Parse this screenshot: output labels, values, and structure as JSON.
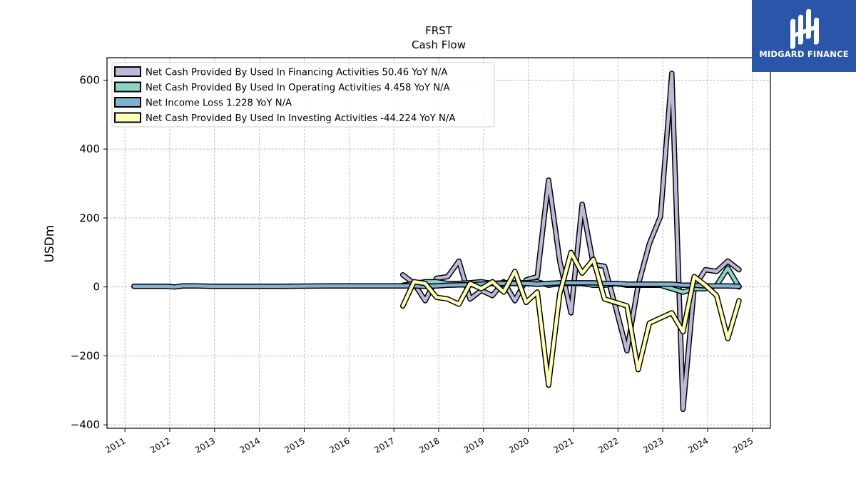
{
  "chart_data": {
    "type": "line",
    "title": "FRST",
    "subtitle": "Cash Flow",
    "xlabel": "",
    "ylabel": "USDm",
    "xlim": [
      2010.6,
      2025.4
    ],
    "ylim": [
      -410,
      665
    ],
    "x_ticks": [
      "2011",
      "2012",
      "2013",
      "2014",
      "2015",
      "2016",
      "2017",
      "2018",
      "2019",
      "2020",
      "2021",
      "2022",
      "2023",
      "2024",
      "2025"
    ],
    "y_ticks": [
      -400,
      -200,
      0,
      200,
      400,
      600
    ],
    "y_tick_labels": [
      "−400",
      "−200",
      "0",
      "200",
      "400",
      "600"
    ],
    "grid": true,
    "legend_position": "top-left",
    "series": [
      {
        "name": "Net Cash Provided By Used In Financing Activities  50.46 YoY N/A",
        "color": "#bcb8d8",
        "points": [
          [
            2017.2,
            35
          ],
          [
            2017.45,
            10
          ],
          [
            2017.7,
            -40
          ],
          [
            2017.95,
            25
          ],
          [
            2018.2,
            30
          ],
          [
            2018.45,
            75
          ],
          [
            2018.7,
            -35
          ],
          [
            2018.95,
            -10
          ],
          [
            2019.2,
            -25
          ],
          [
            2019.45,
            15
          ],
          [
            2019.7,
            -40
          ],
          [
            2019.95,
            20
          ],
          [
            2020.2,
            30
          ],
          [
            2020.45,
            310
          ],
          [
            2020.7,
            75
          ],
          [
            2020.95,
            -75
          ],
          [
            2021.2,
            240
          ],
          [
            2021.45,
            65
          ],
          [
            2021.7,
            60
          ],
          [
            2021.95,
            -60
          ],
          [
            2022.2,
            -185
          ],
          [
            2022.45,
            5
          ],
          [
            2022.7,
            125
          ],
          [
            2022.95,
            205
          ],
          [
            2023.2,
            620
          ],
          [
            2023.45,
            -355
          ],
          [
            2023.7,
            0
          ],
          [
            2023.95,
            50
          ],
          [
            2024.2,
            45
          ],
          [
            2024.45,
            75
          ],
          [
            2024.7,
            50
          ]
        ]
      },
      {
        "name": "Net Cash Provided By Used In Operating Activities  4.458 YoY N/A",
        "color": "#8dd3c7",
        "points": [
          [
            2017.2,
            5
          ],
          [
            2017.45,
            10
          ],
          [
            2017.7,
            15
          ],
          [
            2017.95,
            15
          ],
          [
            2018.2,
            10
          ],
          [
            2018.45,
            10
          ],
          [
            2018.7,
            12
          ],
          [
            2018.95,
            15
          ],
          [
            2019.2,
            10
          ],
          [
            2019.45,
            12
          ],
          [
            2019.7,
            12
          ],
          [
            2019.95,
            12
          ],
          [
            2020.2,
            15
          ],
          [
            2020.45,
            5
          ],
          [
            2020.7,
            10
          ],
          [
            2020.95,
            10
          ],
          [
            2021.2,
            10
          ],
          [
            2021.45,
            5
          ],
          [
            2021.7,
            5
          ],
          [
            2021.95,
            10
          ],
          [
            2022.2,
            5
          ],
          [
            2022.45,
            5
          ],
          [
            2022.7,
            5
          ],
          [
            2022.95,
            5
          ],
          [
            2023.2,
            -5
          ],
          [
            2023.45,
            -15
          ],
          [
            2023.7,
            -5
          ],
          [
            2023.95,
            -5
          ],
          [
            2024.2,
            5
          ],
          [
            2024.45,
            55
          ],
          [
            2024.7,
            0
          ]
        ]
      },
      {
        "name": "Net Income Loss  1.228 YoY N/A",
        "color": "#80b1d3",
        "points": [
          [
            2011.2,
            2
          ],
          [
            2011.45,
            2
          ],
          [
            2011.7,
            2
          ],
          [
            2011.95,
            2
          ],
          [
            2012.1,
            0
          ],
          [
            2012.3,
            3
          ],
          [
            2012.6,
            3
          ],
          [
            2012.9,
            2
          ],
          [
            2013.5,
            2
          ],
          [
            2014.5,
            2
          ],
          [
            2015.5,
            3
          ],
          [
            2016.5,
            3
          ],
          [
            2017.0,
            3
          ],
          [
            2017.45,
            3
          ],
          [
            2017.7,
            2
          ],
          [
            2017.95,
            3
          ],
          [
            2018.2,
            5
          ],
          [
            2018.45,
            6
          ],
          [
            2018.7,
            6
          ],
          [
            2018.95,
            8
          ],
          [
            2019.2,
            10
          ],
          [
            2019.45,
            10
          ],
          [
            2019.7,
            10
          ],
          [
            2019.95,
            10
          ],
          [
            2020.2,
            8
          ],
          [
            2020.45,
            10
          ],
          [
            2020.7,
            12
          ],
          [
            2020.95,
            12
          ],
          [
            2021.2,
            12
          ],
          [
            2021.45,
            12
          ],
          [
            2021.7,
            10
          ],
          [
            2021.95,
            10
          ],
          [
            2022.2,
            8
          ],
          [
            2022.45,
            8
          ],
          [
            2022.7,
            8
          ],
          [
            2022.95,
            8
          ],
          [
            2023.2,
            8
          ],
          [
            2023.45,
            5
          ],
          [
            2023.7,
            5
          ],
          [
            2023.95,
            3
          ],
          [
            2024.2,
            3
          ],
          [
            2024.45,
            3
          ],
          [
            2024.7,
            2
          ]
        ]
      },
      {
        "name": "Net Cash Provided By Used In Investing Activities  -44.224 YoY N/A",
        "color": "#ffffb3",
        "points": [
          [
            2017.2,
            -55
          ],
          [
            2017.45,
            15
          ],
          [
            2017.7,
            10
          ],
          [
            2017.95,
            -30
          ],
          [
            2018.2,
            -35
          ],
          [
            2018.45,
            -50
          ],
          [
            2018.7,
            10
          ],
          [
            2018.95,
            -5
          ],
          [
            2019.2,
            15
          ],
          [
            2019.45,
            -15
          ],
          [
            2019.7,
            45
          ],
          [
            2019.95,
            -45
          ],
          [
            2020.2,
            -15
          ],
          [
            2020.45,
            -285
          ],
          [
            2020.7,
            -20
          ],
          [
            2020.95,
            100
          ],
          [
            2021.2,
            40
          ],
          [
            2021.45,
            80
          ],
          [
            2021.7,
            -35
          ],
          [
            2021.95,
            -45
          ],
          [
            2022.2,
            -55
          ],
          [
            2022.45,
            -240
          ],
          [
            2022.7,
            -105
          ],
          [
            2022.95,
            -90
          ],
          [
            2023.2,
            -75
          ],
          [
            2023.45,
            -130
          ],
          [
            2023.7,
            30
          ],
          [
            2023.95,
            5
          ],
          [
            2024.2,
            -25
          ],
          [
            2024.45,
            -150
          ],
          [
            2024.7,
            -40
          ]
        ]
      }
    ]
  },
  "logo": {
    "text": "MIDGARD FINANCE",
    "background": "#2a55a8",
    "icon": "stacked-m-logo-icon"
  }
}
